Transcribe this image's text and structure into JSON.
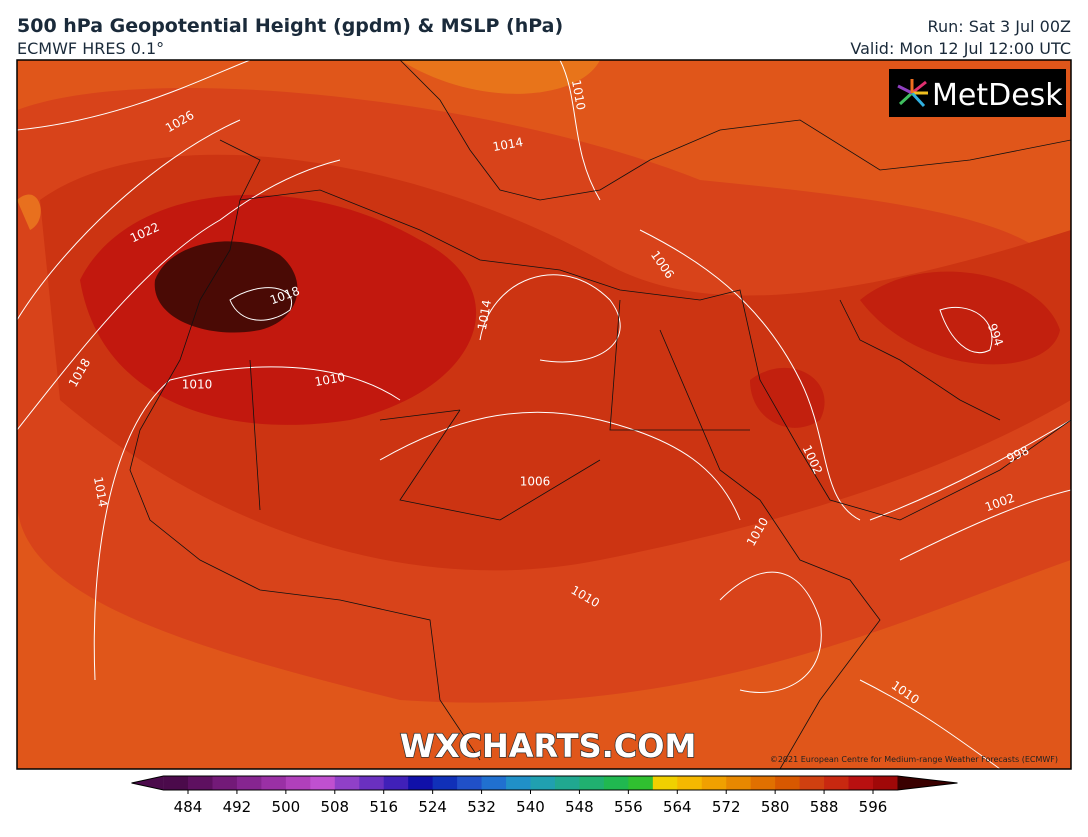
{
  "header": {
    "title": "500 hPa Geopotential Height (gpdm) & MSLP (hPa)",
    "subtitle": "ECMWF HRES 0.1°",
    "run": "Run: Sat 3 Jul 00Z",
    "valid": "Valid: Mon 12 Jul 12:00 UTC"
  },
  "map": {
    "logo": "MetDesk",
    "watermark": "WXCHARTS.COM",
    "copyright": "©2021 European Centre for Medium-range Weather Forecasts (ECMWF)",
    "contour_labels": [
      1026,
      1022,
      1018,
      1018,
      1010,
      1010,
      1014,
      1014,
      1014,
      1010,
      1006,
      1006,
      1010,
      1010,
      1002,
      998,
      1002,
      994,
      1010
    ]
  },
  "colorbar": {
    "ticks": [
      484,
      492,
      500,
      508,
      516,
      524,
      532,
      540,
      548,
      556,
      564,
      572,
      580,
      588,
      596
    ],
    "colors": [
      "#4b0a4b",
      "#5e1060",
      "#731a78",
      "#862590",
      "#9a30a5",
      "#b040bb",
      "#c050d0",
      "#9040c8",
      "#6a30c0",
      "#4020b8",
      "#1010a8",
      "#1030b8",
      "#2050c8",
      "#2070d0",
      "#2090c8",
      "#20a0b0",
      "#20a890",
      "#20b070",
      "#20b850",
      "#30c030",
      "#f0d000",
      "#f5b800",
      "#f0a000",
      "#e88800",
      "#e07000",
      "#d85800",
      "#d04010",
      "#c82810",
      "#b81010",
      "#a00808"
    ]
  }
}
